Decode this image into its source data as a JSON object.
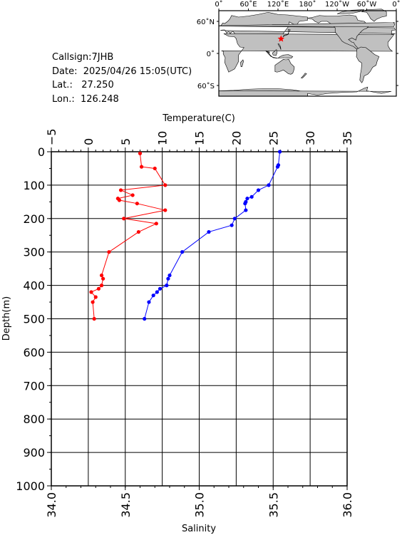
{
  "station": {
    "callsign_label": "Callsign:",
    "callsign": "7JHB",
    "date_label": "Date:",
    "date": "2025/04/26 15:05(UTC)",
    "lat_label": "Lat.:",
    "lat": "27.250",
    "lon_label": "Lon.:",
    "lon": "126.248"
  },
  "map": {
    "top_labels": [
      "0˚",
      "60˚E",
      "120˚E",
      "180˚",
      "120˚W",
      "60˚W",
      "0˚"
    ],
    "lat_labels": [
      "60˚N",
      "0˚",
      "60˚S"
    ],
    "marker": {
      "lat": 27.25,
      "lon": 126.248,
      "color": "#ff0000"
    },
    "land_color": "#c0c0c0",
    "ocean_color": "#ffffff"
  },
  "chart_data": {
    "type": "line",
    "ylabel": "Depth(m)",
    "ylim": [
      1000,
      0
    ],
    "yticks": [
      0,
      100,
      200,
      300,
      400,
      500,
      600,
      700,
      800,
      900,
      1000
    ],
    "top_axis": {
      "label": "Temperature(C)",
      "range": [
        -5,
        35
      ],
      "ticks": [
        -5,
        0,
        5,
        10,
        15,
        20,
        25,
        30,
        35
      ]
    },
    "bottom_axis": {
      "label": "Salinity",
      "range": [
        34.0,
        36.0
      ],
      "ticks": [
        "34.0",
        "34.5",
        "35.0",
        "35.5",
        "36.0"
      ]
    },
    "grid": true,
    "series": [
      {
        "axis": "temperature",
        "color": "#0000ff",
        "points": [
          [
            25.9,
            0
          ],
          [
            25.7,
            40
          ],
          [
            25.6,
            45
          ],
          [
            24.4,
            100
          ],
          [
            23.0,
            115
          ],
          [
            22.1,
            135
          ],
          [
            21.5,
            140
          ],
          [
            21.3,
            150
          ],
          [
            21.2,
            155
          ],
          [
            21.3,
            175
          ],
          [
            19.8,
            200
          ],
          [
            19.4,
            220
          ],
          [
            16.3,
            240
          ],
          [
            12.7,
            300
          ],
          [
            11.0,
            370
          ],
          [
            10.8,
            380
          ],
          [
            10.6,
            400
          ],
          [
            9.7,
            410
          ],
          [
            9.3,
            420
          ],
          [
            8.8,
            430
          ],
          [
            8.2,
            450
          ],
          [
            7.6,
            500
          ]
        ]
      },
      {
        "axis": "salinity",
        "color": "#ff0000",
        "points": [
          [
            34.6,
            5
          ],
          [
            34.61,
            45
          ],
          [
            34.7,
            50
          ],
          [
            34.77,
            100
          ],
          [
            34.47,
            115
          ],
          [
            34.55,
            130
          ],
          [
            34.45,
            140
          ],
          [
            34.46,
            145
          ],
          [
            34.58,
            155
          ],
          [
            34.77,
            175
          ],
          [
            34.49,
            200
          ],
          [
            34.71,
            215
          ],
          [
            34.59,
            240
          ],
          [
            34.39,
            300
          ],
          [
            34.34,
            370
          ],
          [
            34.35,
            380
          ],
          [
            34.34,
            400
          ],
          [
            34.32,
            410
          ],
          [
            34.27,
            420
          ],
          [
            34.3,
            435
          ],
          [
            34.28,
            450
          ],
          [
            34.29,
            500
          ]
        ]
      }
    ]
  }
}
